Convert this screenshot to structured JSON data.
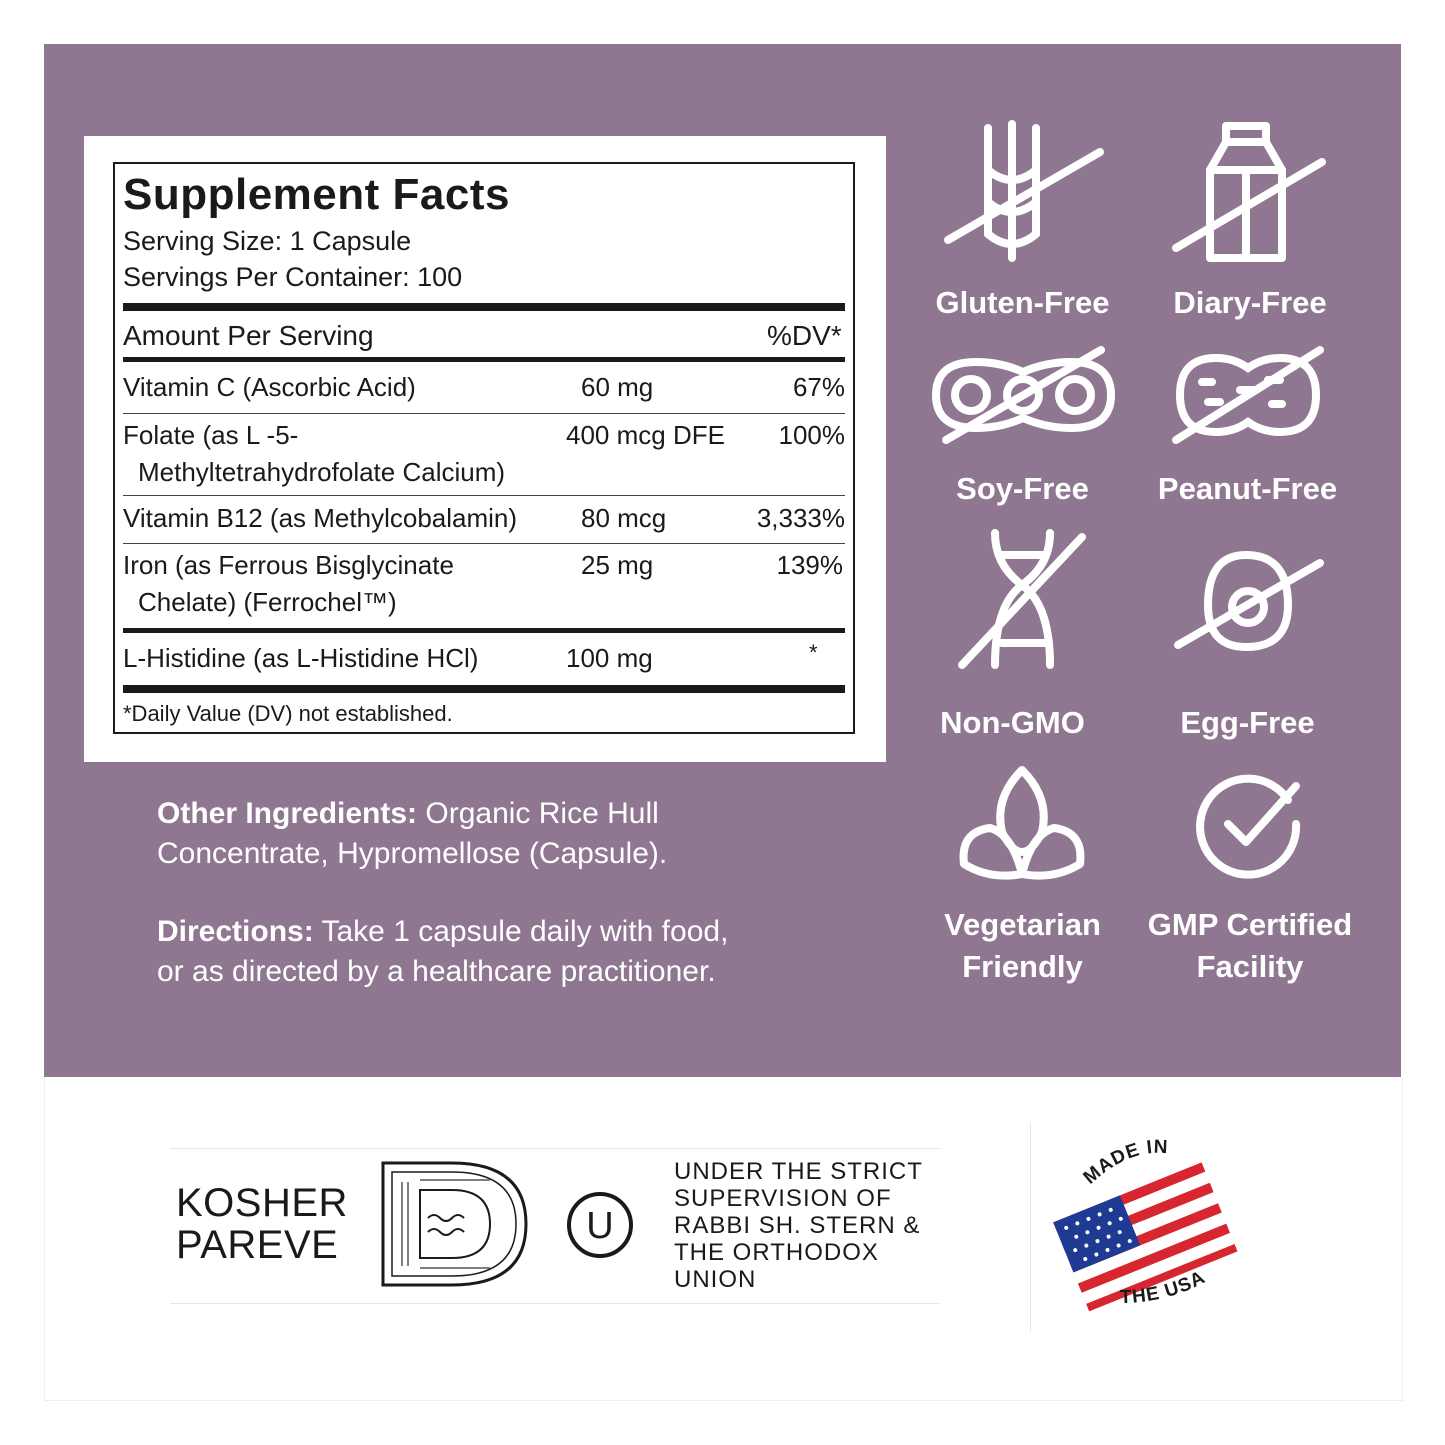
{
  "colors": {
    "panel": "#8f7792",
    "flag_red": "#d7262f",
    "flag_blue": "#1f3a93"
  },
  "facts": {
    "title": "Supplement Facts",
    "serving_size": "Serving Size: 1 Capsule",
    "servings_per_container": "Servings Per Container: 100",
    "header_amount": "Amount Per Serving",
    "header_dv": "%DV*",
    "rows": [
      {
        "name": "Vitamin C (Ascorbic Acid)",
        "name2": "",
        "amount": "60 mg",
        "dv": "67%"
      },
      {
        "name": "Folate (as L -5-",
        "name2": "Methyltetrahydrofolate Calcium)",
        "amount": "400 mcg DFE",
        "dv": "100%"
      },
      {
        "name": "Vitamin B12 (as Methylcobalamin)",
        "name2": "",
        "amount": "80 mcg",
        "dv": "3,333%"
      },
      {
        "name": "Iron (as Ferrous Bisglycinate",
        "name2": "Chelate) (Ferrochel™)",
        "amount": "25 mg",
        "dv": "139%"
      },
      {
        "name": "L-Histidine (as L-Histidine HCl)",
        "name2": "",
        "amount": "100 mg",
        "dv": "*"
      }
    ],
    "footnote": "*Daily Value (DV) not established."
  },
  "other_ingredients": {
    "label": "Other Ingredients:",
    "line1": "Organic Rice Hull",
    "line2": "Concentrate, Hypromellose (Capsule)."
  },
  "directions": {
    "label": "Directions:",
    "line1": "Take 1 capsule daily with food,",
    "line2": "or as directed by a healthcare practitioner."
  },
  "badges": [
    {
      "label": "Gluten-Free",
      "icon": "wheat-crossed-icon"
    },
    {
      "label": "Diary-Free",
      "icon": "milk-carton-crossed-icon"
    },
    {
      "label": "Soy-Free",
      "icon": "soybean-crossed-icon"
    },
    {
      "label": "Peanut-Free",
      "icon": "peanut-crossed-icon"
    },
    {
      "label": "Non-GMO",
      "icon": "dna-crossed-icon"
    },
    {
      "label": "Egg-Free",
      "icon": "egg-crossed-icon"
    },
    {
      "label": "Vegetarian",
      "label2": "Friendly",
      "icon": "leaf-icon"
    },
    {
      "label": "GMP Certified",
      "label2": "Facility",
      "icon": "check-circle-icon"
    }
  ],
  "certification": {
    "kosher_line1": "KOSHER",
    "kosher_line2": "PAREVE",
    "ou_symbol": "U",
    "supervision_lines": [
      "UNDER THE STRICT",
      "SUPERVISION OF",
      "RABBI SH. STERN &",
      "THE ORTHODOX",
      "UNION"
    ],
    "made_in_top": "MADE IN",
    "made_in_bottom": "THE USA"
  }
}
